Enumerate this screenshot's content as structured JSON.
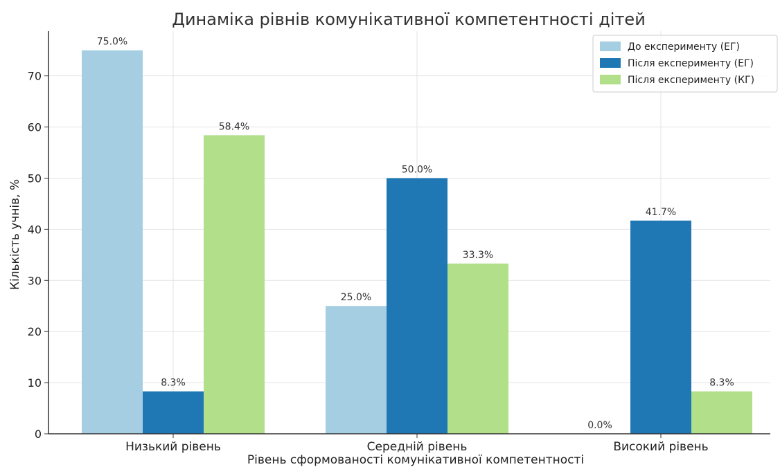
{
  "chart_data": {
    "type": "bar",
    "title": "Динаміка рівнів комунікативної компетентності дітей",
    "xlabel": "Рівень сформованості комунікативної компетентності",
    "ylabel": "Кількість учнів, %",
    "categories": [
      "Низький рівень",
      "Середній рівень",
      "Високий рівень"
    ],
    "series": [
      {
        "name": "До експерименту (ЕГ)",
        "values": [
          75.0,
          25.0,
          0.0
        ],
        "labels": [
          "75.0%",
          "25.0%",
          "0.0%"
        ],
        "color": "#a6cee3"
      },
      {
        "name": "Після експерименту (ЕГ)",
        "values": [
          8.3,
          50.0,
          41.7
        ],
        "labels": [
          "8.3%",
          "50.0%",
          "41.7%"
        ],
        "color": "#1f78b4"
      },
      {
        "name": "Після експерименту (КГ)",
        "values": [
          58.4,
          33.3,
          8.3
        ],
        "labels": [
          "58.4%",
          "33.3%",
          "8.3%"
        ],
        "color": "#b2df8a"
      }
    ],
    "yticks": [
      "0",
      "10",
      "20",
      "30",
      "40",
      "50",
      "60",
      "70"
    ],
    "ylim": [
      0,
      78.75
    ],
    "grid": true,
    "legend_position": "top-right"
  }
}
